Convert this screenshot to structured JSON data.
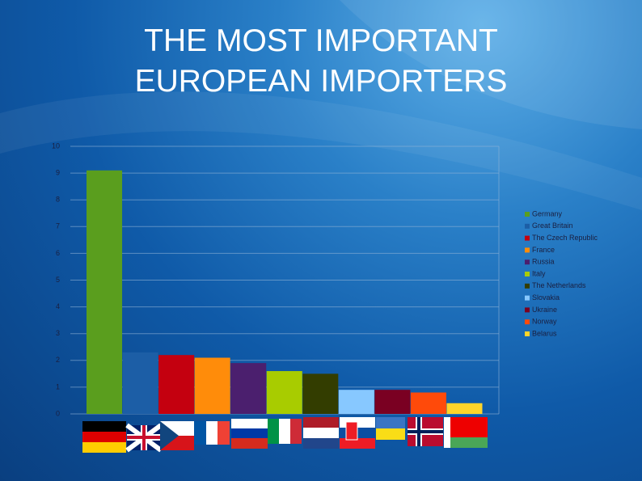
{
  "chart_data": {
    "type": "bar",
    "title": "THE MOST IMPORTANT EUROPEAN IMPORTERS",
    "categories": [
      null
    ],
    "series": [
      {
        "name": "Germany",
        "color": "#5a9e1e",
        "values": [
          9.1
        ]
      },
      {
        "name": "Great Britain",
        "color": "#1c5ea6",
        "values": [
          2.3
        ]
      },
      {
        "name": "The Czech Republic",
        "color": "#c4000f",
        "values": [
          2.2
        ]
      },
      {
        "name": "France",
        "color": "#ff8c0a",
        "values": [
          2.1
        ]
      },
      {
        "name": "Russia",
        "color": "#4b1f6e",
        "values": [
          1.9
        ]
      },
      {
        "name": "Italy",
        "color": "#a8cc00",
        "values": [
          1.6
        ]
      },
      {
        "name": "The Netherlands",
        "color": "#333d00",
        "values": [
          1.5
        ]
      },
      {
        "name": "Slovakia",
        "color": "#87c8ff",
        "values": [
          0.9
        ]
      },
      {
        "name": "Ukraine",
        "color": "#7a0022",
        "values": [
          0.9
        ]
      },
      {
        "name": "Norway",
        "color": "#ff4a0a",
        "values": [
          0.8
        ]
      },
      {
        "name": "Belarus",
        "color": "#ffd42a",
        "values": [
          0.4
        ]
      }
    ],
    "ylim": [
      0,
      10
    ],
    "yticks": [
      0,
      1,
      2,
      3,
      4,
      5,
      6,
      7,
      8,
      9,
      10
    ],
    "grid": true,
    "legend": "right"
  }
}
